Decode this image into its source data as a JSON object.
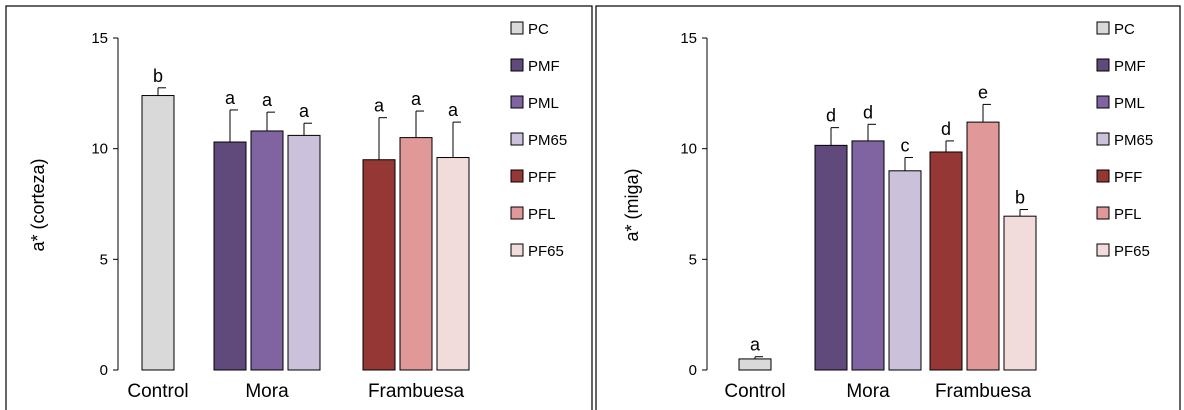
{
  "chart_data": [
    {
      "type": "bar",
      "ylabel": "a* (corteza)",
      "ylim": [
        0,
        15
      ],
      "yticks": [
        0,
        5,
        10,
        15
      ],
      "groups": [
        {
          "label": "Control",
          "bars": [
            "PC"
          ]
        },
        {
          "label": "Mora",
          "bars": [
            "PMF",
            "PML",
            "PM65"
          ]
        },
        {
          "label": "Frambuesa",
          "bars": [
            "PFF",
            "PFL",
            "PF65"
          ]
        }
      ],
      "series": [
        {
          "name": "PC",
          "value": 12.4,
          "error": 0.35,
          "letter": "b",
          "color": "#d9d9d9"
        },
        {
          "name": "PMF",
          "value": 10.3,
          "error": 1.45,
          "letter": "a",
          "color": "#604a7b"
        },
        {
          "name": "PML",
          "value": 10.8,
          "error": 0.85,
          "letter": "a",
          "color": "#8064a2"
        },
        {
          "name": "PM65",
          "value": 10.6,
          "error": 0.55,
          "letter": "a",
          "color": "#ccc1da"
        },
        {
          "name": "PFF",
          "value": 9.5,
          "error": 1.9,
          "letter": "a",
          "color": "#953735"
        },
        {
          "name": "PFL",
          "value": 10.5,
          "error": 1.2,
          "letter": "a",
          "color": "#e09898"
        },
        {
          "name": "PF65",
          "value": 9.6,
          "error": 1.6,
          "letter": "a",
          "color": "#f2dcdb"
        }
      ],
      "legend_position": "right",
      "grid": false
    },
    {
      "type": "bar",
      "ylabel": "a* (miga)",
      "ylim": [
        0,
        15
      ],
      "yticks": [
        0,
        5,
        10,
        15
      ],
      "groups": [
        {
          "label": "Control",
          "bars": [
            "PC"
          ]
        },
        {
          "label": "Mora",
          "bars": [
            "PMF",
            "PML",
            "PM65"
          ]
        },
        {
          "label": "Frambuesa",
          "bars": [
            "PFF",
            "PFL",
            "PF65"
          ]
        }
      ],
      "series": [
        {
          "name": "PC",
          "value": 0.5,
          "error": 0.1,
          "letter": "a",
          "color": "#d9d9d9"
        },
        {
          "name": "PMF",
          "value": 10.15,
          "error": 0.8,
          "letter": "d",
          "color": "#604a7b"
        },
        {
          "name": "PML",
          "value": 10.35,
          "error": 0.75,
          "letter": "d",
          "color": "#8064a2"
        },
        {
          "name": "PM65",
          "value": 9.0,
          "error": 0.6,
          "letter": "c",
          "color": "#ccc1da"
        },
        {
          "name": "PFF",
          "value": 9.85,
          "error": 0.5,
          "letter": "d",
          "color": "#953735"
        },
        {
          "name": "PFL",
          "value": 11.2,
          "error": 0.8,
          "letter": "e",
          "color": "#e09898"
        },
        {
          "name": "PF65",
          "value": 6.95,
          "error": 0.3,
          "letter": "b",
          "color": "#f2dcdb"
        }
      ],
      "legend_position": "right",
      "grid": false
    }
  ]
}
